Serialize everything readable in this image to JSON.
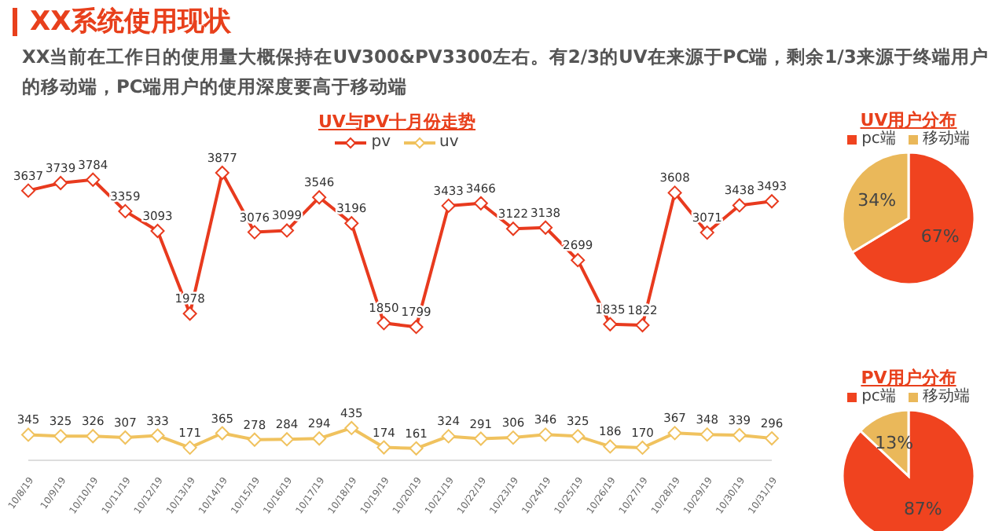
{
  "chart_data": [
    {
      "type": "line",
      "title": "UV与PV十月份走势",
      "annotations": [
        "XX系统使用现状",
        "XX当前在工作日的使用量大概保持在UV300&PV3300左右。有2/3的UV在来源于PC端，剩余1/3来源于终端用户的移动端，PC端用户的使用深度要高于移动端"
      ],
      "categories": [
        "10/8/19",
        "10/9/19",
        "10/10/19",
        "10/11/19",
        "10/12/19",
        "10/13/19",
        "10/14/19",
        "10/15/19",
        "10/16/19",
        "10/17/19",
        "10/18/19",
        "10/19/19",
        "10/20/19",
        "10/21/19",
        "10/22/19",
        "10/23/19",
        "10/24/19",
        "10/25/19",
        "10/26/19",
        "10/27/19",
        "10/28/19",
        "10/29/19",
        "10/30/19",
        "10/31/19"
      ],
      "series": [
        {
          "name": "pv",
          "color": "#e83a1e",
          "values": [
            3637,
            3739,
            3784,
            3359,
            3093,
            1978,
            3877,
            3076,
            3099,
            3546,
            3196,
            1850,
            1799,
            3433,
            3466,
            3122,
            3138,
            2699,
            1835,
            1822,
            3608,
            3071,
            3438,
            3493
          ]
        },
        {
          "name": "uv",
          "color": "#f0c25e",
          "values": [
            345,
            325,
            326,
            307,
            333,
            171,
            365,
            278,
            284,
            294,
            435,
            174,
            161,
            324,
            291,
            306,
            346,
            325,
            186,
            170,
            367,
            348,
            339,
            296
          ]
        }
      ],
      "data_labels": true,
      "legend": "top",
      "marker": "diamond",
      "grid": false
    },
    {
      "type": "pie",
      "title": "UV用户分布",
      "categories": [
        "pc端",
        "移动端"
      ],
      "values": [
        67,
        34
      ],
      "value_labels": [
        "67%",
        "34%"
      ],
      "colors": [
        "#f0431f",
        "#eab85a"
      ],
      "legend": "top"
    },
    {
      "type": "pie",
      "title": "PV用户分布",
      "categories": [
        "pc端",
        "移动端"
      ],
      "values": [
        87,
        13
      ],
      "value_labels": [
        "87%",
        "13%"
      ],
      "colors": [
        "#f0431f",
        "#eab85a"
      ],
      "legend": "top"
    }
  ]
}
